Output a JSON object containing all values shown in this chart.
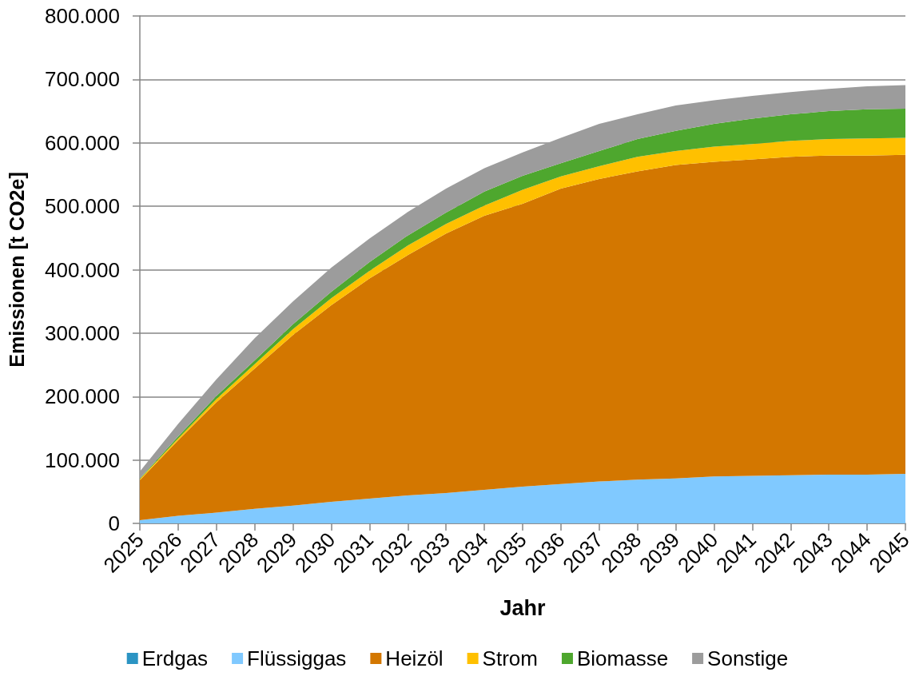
{
  "chart_data": {
    "type": "area",
    "stacked": true,
    "xlabel": "Jahr",
    "ylabel": "Emissionen [t CO2e]",
    "categories": [
      "2025",
      "2026",
      "2027",
      "2028",
      "2029",
      "2030",
      "2031",
      "2032",
      "2033",
      "2034",
      "2035",
      "2036",
      "2037",
      "2038",
      "2039",
      "2040",
      "2041",
      "2042",
      "2043",
      "2044",
      "2045"
    ],
    "series": [
      {
        "name": "Erdgas",
        "color": "#2b94c3",
        "values": [
          null,
          null,
          null,
          null,
          null,
          null,
          null,
          null,
          null,
          null,
          null,
          null,
          null,
          null,
          null,
          null,
          null,
          null,
          null,
          null,
          null
        ]
      },
      {
        "name": "Flüssiggas",
        "color": "#80c9ff",
        "values": [
          5000,
          12000,
          17000,
          23000,
          28000,
          34000,
          39000,
          44000,
          48000,
          53000,
          58000,
          62000,
          66000,
          69000,
          71000,
          74000,
          75000,
          76000,
          77000,
          77000,
          78000
        ]
      },
      {
        "name": "Heizöl",
        "color": "#d37700",
        "values": [
          63000,
          119000,
          174000,
          221000,
          269000,
          310000,
          347000,
          379000,
          409000,
          432000,
          446000,
          466000,
          477000,
          486000,
          494000,
          496000,
          499000,
          502000,
          503000,
          503000,
          503000
        ]
      },
      {
        "name": "Strom",
        "color": "#ffc000",
        "values": [
          2000,
          3000,
          5000,
          7000,
          9000,
          11000,
          12000,
          15000,
          15000,
          16000,
          22000,
          19000,
          20000,
          23000,
          22000,
          24000,
          24000,
          25000,
          26000,
          27000,
          27000
        ]
      },
      {
        "name": "Biomasse",
        "color": "#4ea72e",
        "values": [
          1000,
          3000,
          5000,
          6000,
          8000,
          10000,
          14000,
          16000,
          18000,
          22000,
          22000,
          21000,
          24000,
          28000,
          32000,
          36000,
          40000,
          42000,
          44000,
          46000,
          46000
        ]
      },
      {
        "name": "Sonstige",
        "color": "#9c9c9c",
        "values": [
          11000,
          20000,
          26000,
          35000,
          36000,
          38000,
          37000,
          37000,
          38000,
          37000,
          37000,
          40000,
          43000,
          39000,
          40000,
          37000,
          36000,
          35000,
          35000,
          36000,
          37000
        ]
      }
    ],
    "ylim": [
      0,
      800000
    ],
    "yticks": [
      0,
      {
        "value": 100000,
        "label": "100.000"
      },
      {
        "value": 200000,
        "label": "200.000"
      },
      {
        "value": 300000,
        "label": "300.000"
      },
      {
        "value": 400000,
        "label": "400.000"
      },
      {
        "value": 500000,
        "label": "500.000"
      },
      {
        "value": 600000,
        "label": "600.000"
      },
      {
        "value": 700000,
        "label": "700.000"
      },
      {
        "value": 800000,
        "label": "800.000"
      }
    ],
    "grid": "y",
    "legend": "bottom"
  }
}
